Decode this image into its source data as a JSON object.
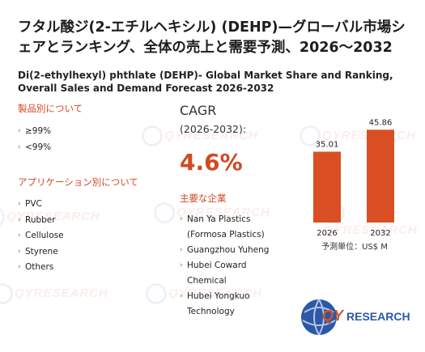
{
  "title_jp": "フタル酸ジ(2-エチルヘキシル) (DEHP)—グローバル市場シェアとランキング、全体の売上と需要予測、2026～2032",
  "title_en": "Di(2-ethylhexyl) phthlate (DEHP)- Global Market Share and Ranking, Overall Sales and Demand Forecast 2026-2032",
  "product_section": {
    "heading": "製品別について",
    "items": [
      "≥99%",
      "<99%"
    ]
  },
  "application_section": {
    "heading": "アプリケーション別について",
    "items": [
      "PVC",
      "Rubber",
      "Cellulose",
      "Styrene",
      "Others"
    ]
  },
  "cagr": {
    "label": "CAGR",
    "period": "(2026-2032):",
    "value": "4.6%"
  },
  "players_section": {
    "heading": "主要な企業",
    "items": [
      "Nan Ya Plastics (Formosa Plastics)",
      "Guangzhou Yuheng",
      "Hubei Coward Chemical",
      "Hubei Yongkuo Technology"
    ]
  },
  "chart_data": {
    "type": "bar",
    "categories": [
      "2026",
      "2032"
    ],
    "values": [
      35.01,
      45.86
    ],
    "value_labels": [
      "35.01",
      "45.86"
    ],
    "unit_label": "予測単位：US$ M",
    "bar_color": "#d94f23",
    "ylim": [
      0,
      50
    ]
  },
  "watermark_text": "QYRESEARCH",
  "logo": {
    "prefix": "QY",
    "suffix": "RESEARCH"
  },
  "colors": {
    "accent": "#d04a22",
    "bar": "#d94f23"
  }
}
